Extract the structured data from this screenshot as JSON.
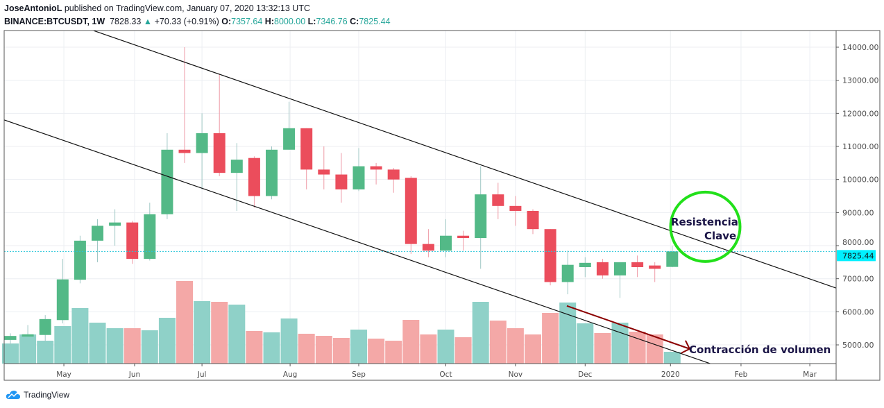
{
  "header": {
    "publisher": "JoseAntonioL",
    "published_text": "published on TradingView.com, January 07, 2020 13:32:13 UTC",
    "symbol": "BINANCE:BTCUSDT, 1W",
    "last": "7828.33",
    "change": "+70.33 (+0.91%)",
    "o_label": "O:",
    "o": "7357.64",
    "h_label": "H:",
    "h": "8000.00",
    "l_label": "L:",
    "l": "7346.76",
    "c_label": "C:",
    "c": "7825.44"
  },
  "footer": {
    "brand": "TradingView"
  },
  "colors": {
    "up": "#53b987",
    "down": "#eb4d5c",
    "vol_up": "#8fd1c8",
    "vol_down": "#f4a8a7",
    "last_price": "#00f0ff",
    "circle": "#22e01a",
    "arrow": "#8b0000",
    "annotation_text": "#1a1446"
  },
  "chart_data": {
    "type": "candlestick",
    "title": "BINANCE:BTCUSDT, 1W",
    "ylim": [
      4400,
      14500
    ],
    "yticks": [
      "14000.00",
      "13000.00",
      "12000.00",
      "11000.00",
      "10000.00",
      "9000.00",
      "8000.00",
      "7000.00",
      "6000.00",
      "5000.00"
    ],
    "ytick_values": [
      14000,
      13000,
      12000,
      11000,
      10000,
      9000,
      8000,
      7000,
      6000,
      5000
    ],
    "last_price_label": "7825.44",
    "last_price": 7825.44,
    "xticks": [
      {
        "label": "May",
        "index": 3.07
      },
      {
        "label": "Jun",
        "index": 7.13
      },
      {
        "label": "Jul",
        "index": 11
      },
      {
        "label": "Aug",
        "index": 16.06
      },
      {
        "label": "Sep",
        "index": 20
      },
      {
        "label": "Oct",
        "index": 25
      },
      {
        "label": "Nov",
        "index": 29
      },
      {
        "label": "Dec",
        "index": 33
      },
      {
        "label": "2020",
        "index": 37.9
      },
      {
        "label": "Feb",
        "index": 41.95
      },
      {
        "label": "Mar",
        "index": 45.9
      }
    ],
    "candles": [
      [
        5150,
        5270,
        5350,
        5000
      ],
      [
        5250,
        5320,
        5600,
        5250
      ],
      [
        5300,
        5780,
        5900,
        5100
      ],
      [
        5750,
        6980,
        7600,
        5650
      ],
      [
        6970,
        8150,
        8300,
        6860
      ],
      [
        8150,
        8600,
        8800,
        7500
      ],
      [
        8600,
        8700,
        9100,
        8000
      ],
      [
        8700,
        7600,
        8750,
        7450
      ],
      [
        7600,
        8950,
        9300,
        7550
      ],
      [
        8950,
        10900,
        11400,
        8800
      ],
      [
        10900,
        10800,
        14000,
        10500
      ],
      [
        10800,
        11400,
        12000,
        9700
      ],
      [
        11400,
        10200,
        13200,
        10100
      ],
      [
        10200,
        10600,
        11100,
        9050
      ],
      [
        10650,
        9500,
        10700,
        9150
      ],
      [
        9500,
        10900,
        11000,
        9400
      ],
      [
        10900,
        11550,
        12350,
        10900
      ],
      [
        11550,
        10300,
        11550,
        9700
      ],
      [
        10300,
        10150,
        11000,
        9700
      ],
      [
        10150,
        9700,
        10800,
        9300
      ],
      [
        9700,
        10400,
        10950,
        9650
      ],
      [
        10400,
        10300,
        10500,
        9850
      ],
      [
        10300,
        10000,
        10350,
        9600
      ],
      [
        10050,
        8050,
        10100,
        7750
      ],
      [
        8050,
        7850,
        8500,
        7650
      ],
      [
        7850,
        8300,
        8800,
        7650
      ],
      [
        8300,
        8230,
        8450,
        7850
      ],
      [
        8230,
        9550,
        10400,
        7300
      ],
      [
        9550,
        9200,
        9900,
        8800
      ],
      [
        9200,
        9050,
        9500,
        8600
      ],
      [
        9050,
        8500,
        9100,
        8350
      ],
      [
        8500,
        6900,
        8500,
        6800
      ],
      [
        6900,
        7420,
        7850,
        6530
      ],
      [
        7350,
        7480,
        7650,
        7050
      ],
      [
        7500,
        7100,
        7600,
        7000
      ],
      [
        7100,
        7500,
        7500,
        6420
      ],
      [
        7500,
        7350,
        7700,
        7050
      ],
      [
        7400,
        7300,
        7500,
        6900
      ],
      [
        7357.64,
        7825.44,
        8000,
        7346.76
      ]
    ],
    "volume_relative": [
      29,
      42,
      33,
      54,
      80,
      59,
      51,
      51,
      48,
      66,
      119,
      90,
      89,
      85,
      47,
      45,
      65,
      43,
      40,
      37,
      49,
      36,
      33,
      63,
      42,
      49,
      38,
      89,
      62,
      51,
      42,
      73,
      88,
      58,
      44,
      59,
      46,
      42,
      17
    ],
    "trendlines": [
      {
        "name": "upper-channel",
        "from": [
          4.78,
          14500
        ],
        "to": [
          47.4,
          6720
        ]
      },
      {
        "name": "lower-channel",
        "from": [
          -0.36,
          11800
        ],
        "to": [
          40.2,
          4430
        ]
      }
    ],
    "annotations": {
      "resistance_line1": "Resistencia",
      "resistance_line2": "Clave",
      "resistance_circle": {
        "index": 39.9,
        "price": 8570
      },
      "volume_text": "Contracción de volumen",
      "volume_arrow": {
        "from": [
          31.95,
          6180
        ],
        "to": [
          39,
          4880
        ]
      }
    }
  }
}
